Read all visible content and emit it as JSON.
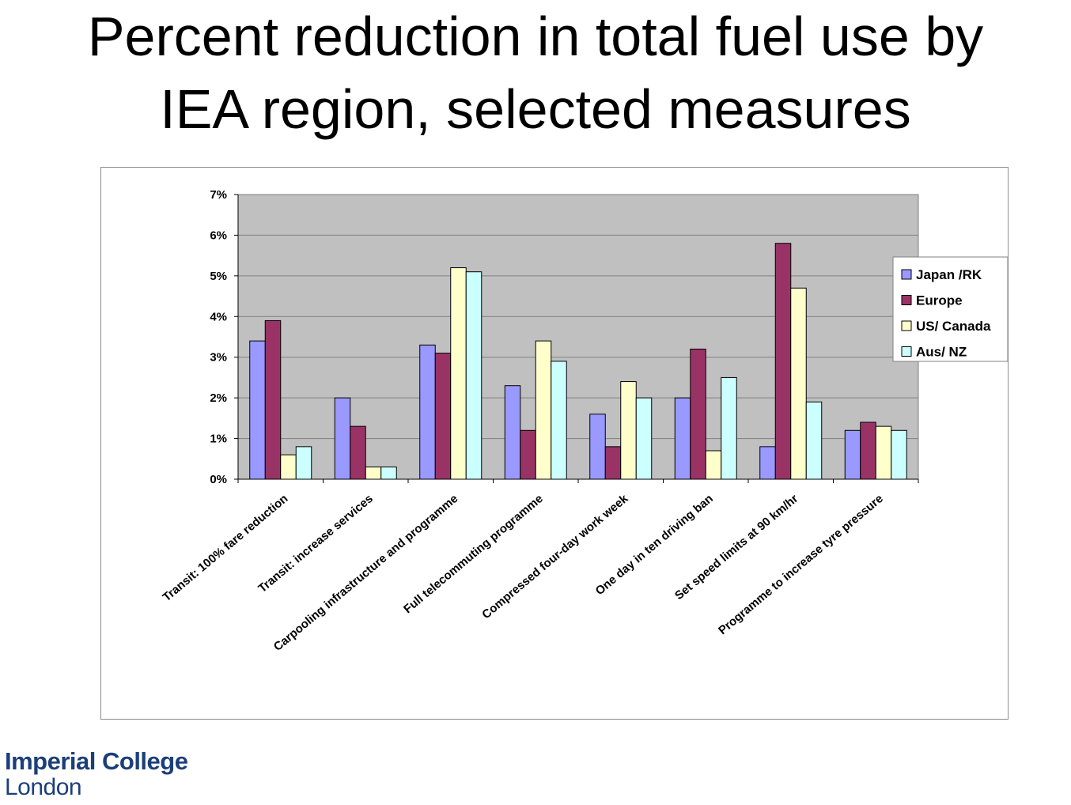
{
  "slide": {
    "title_line1": "Percent reduction in total fuel use by",
    "title_line2": "IEA region, selected measures"
  },
  "logo": {
    "line1": "Imperial College",
    "line2": "London"
  },
  "colors": {
    "plot_background": "#c0c0c0",
    "Japan /RK": "#9999ff",
    "Europe": "#993366",
    "US/ Canada": "#ffffcc",
    "Aus/ NZ": "#ccffff"
  },
  "chart_data": {
    "type": "bar",
    "categories": [
      "Transit: 100% fare reduction",
      "Transit: increase services",
      "Carpooling infrastructure and programme",
      "Full telecommuting programme",
      "Compressed four-day work week",
      "One day in ten driving ban",
      "Set speed limits at 90 km/hr",
      "Programme to increase tyre pressure"
    ],
    "series": [
      {
        "name": "Japan /RK",
        "values": [
          3.4,
          2.0,
          3.3,
          2.3,
          1.6,
          2.0,
          0.8,
          1.2
        ]
      },
      {
        "name": "Europe",
        "values": [
          3.9,
          1.3,
          3.1,
          1.2,
          0.8,
          3.2,
          5.8,
          1.4
        ]
      },
      {
        "name": "US/ Canada",
        "values": [
          0.6,
          0.3,
          5.2,
          3.4,
          2.4,
          0.7,
          4.7,
          1.3
        ]
      },
      {
        "name": "Aus/ NZ",
        "values": [
          0.8,
          0.3,
          5.1,
          2.9,
          2.0,
          2.5,
          1.9,
          1.2
        ]
      }
    ],
    "ylim": [
      0,
      7
    ],
    "yticks": [
      "0%",
      "1%",
      "2%",
      "3%",
      "4%",
      "5%",
      "6%",
      "7%"
    ],
    "ylabel": "",
    "xlabel": "",
    "grid": true,
    "legend_position": "right"
  }
}
